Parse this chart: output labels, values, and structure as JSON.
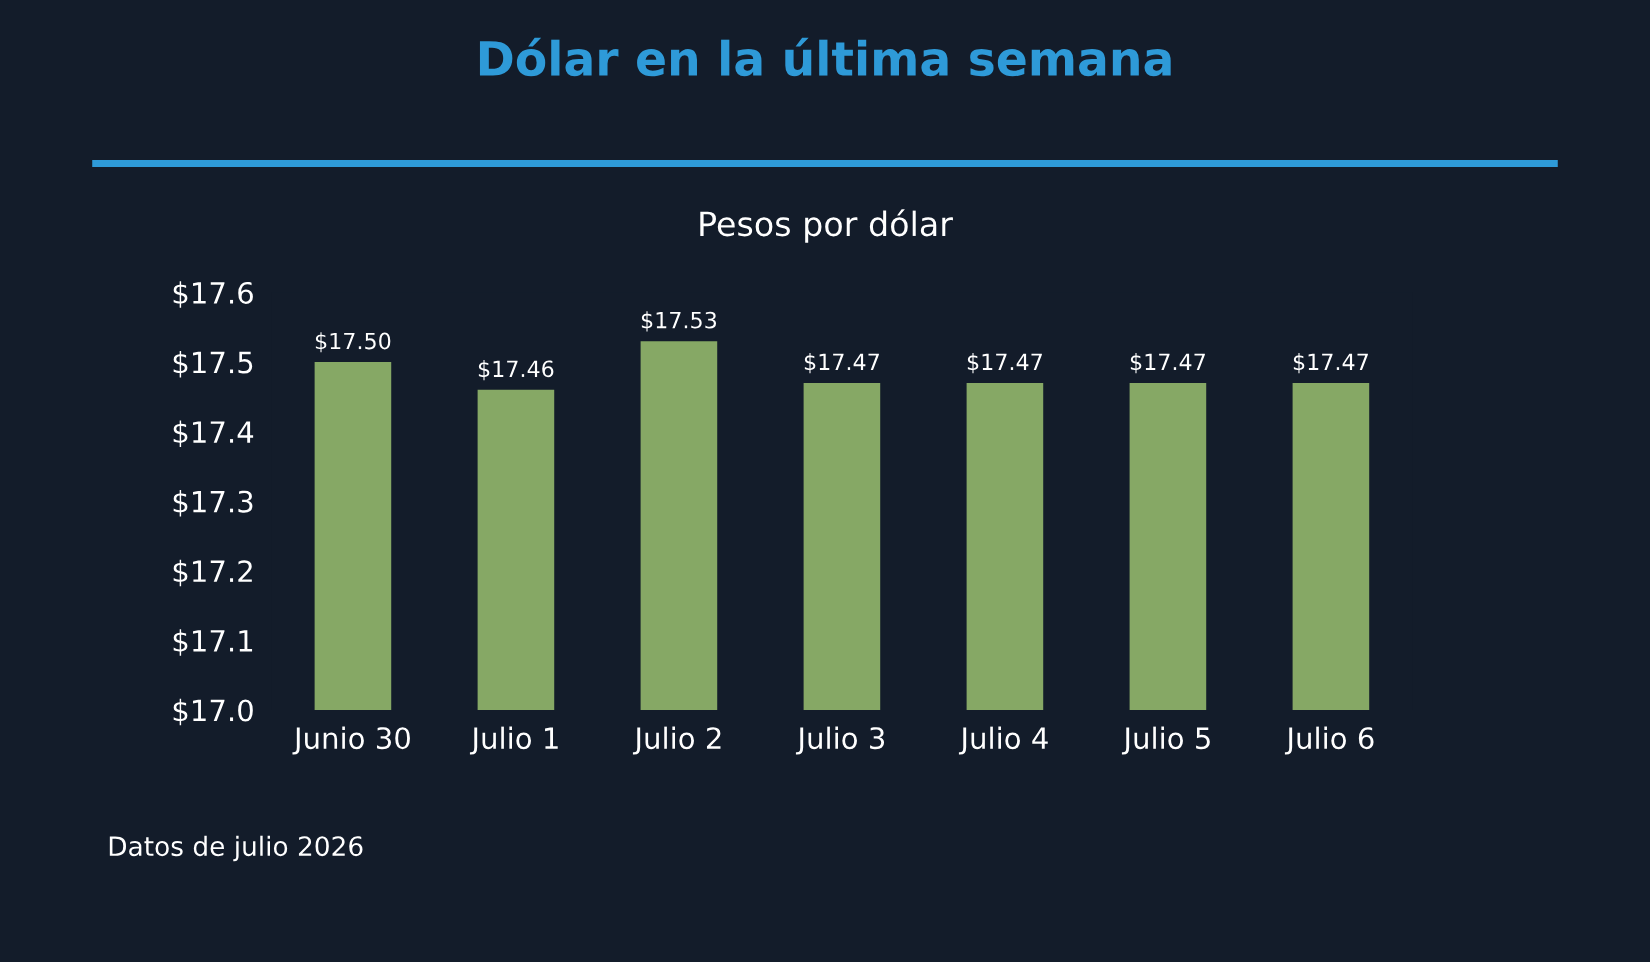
{
  "chart_data": {
    "type": "bar",
    "title": "Dólar en la última semana",
    "subtitle": "Pesos por dólar",
    "categories": [
      "Junio 30",
      "Julio 1",
      "Julio 2",
      "Julio 3",
      "Julio 4",
      "Julio 5",
      "Julio 6"
    ],
    "values": [
      17.5,
      17.46,
      17.53,
      17.47,
      17.47,
      17.47,
      17.47
    ],
    "value_labels": [
      "$17.50",
      "$17.46",
      "$17.53",
      "$17.47",
      "$17.47",
      "$17.47",
      "$17.47"
    ],
    "color": "#86a865",
    "ylim": [
      17.0,
      17.6
    ],
    "yticks": [
      {
        "value": 17.0,
        "label": "$17.0"
      },
      {
        "value": 17.1,
        "label": "$17.1"
      },
      {
        "value": 17.2,
        "label": "$17.2"
      },
      {
        "value": 17.3,
        "label": "$17.3"
      },
      {
        "value": 17.4,
        "label": "$17.4"
      },
      {
        "value": 17.5,
        "label": "$17.5"
      },
      {
        "value": 17.6,
        "label": "$17.6"
      }
    ],
    "grid": false,
    "legend": false,
    "annotations": [
      "Datos de julio 2026"
    ]
  }
}
